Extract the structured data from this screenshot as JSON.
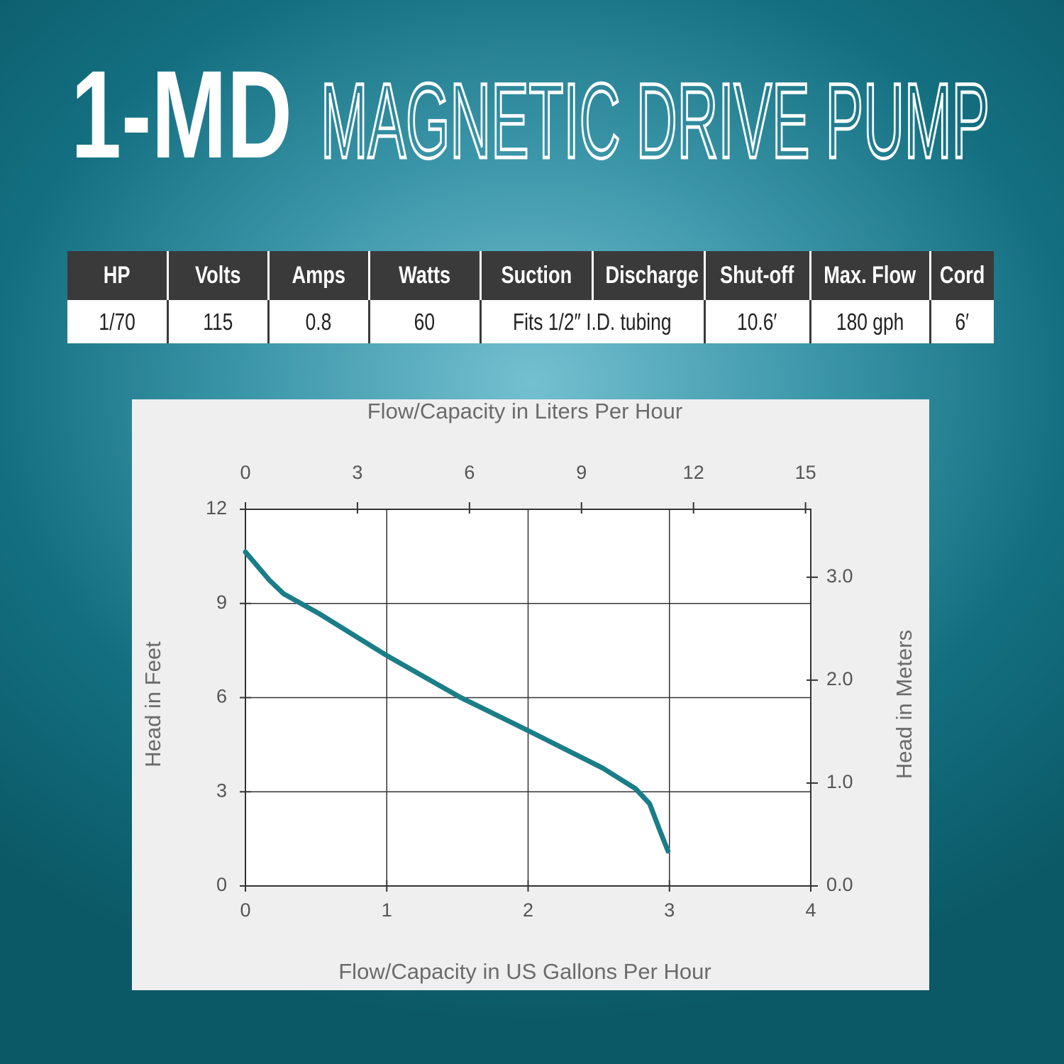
{
  "header": {
    "model": "1-MD",
    "title": "MAGNETIC DRIVE PUMP"
  },
  "table": {
    "columns": [
      "HP",
      "Volts",
      "Amps",
      "Watts",
      "Suction",
      "Discharge",
      "Shut-off",
      "Max. Flow",
      "Cord"
    ],
    "rows": [
      [
        "1/70",
        "115",
        "0.8",
        "60",
        "Fits 1/2″ I.D. tubing",
        "10.6′",
        "180 gph",
        "6′"
      ]
    ]
  },
  "chart_data": {
    "type": "line",
    "x_label": "Flow/Capacity in US Gallons Per Hour",
    "x2_label": "Flow/Capacity in Liters Per Hour",
    "y_label": "Head in Feet",
    "y2_label": "Head in Meters",
    "x": [
      0,
      0.17,
      0.27,
      0.52,
      1.0,
      1.52,
      2.0,
      2.53,
      2.76,
      2.86,
      2.93,
      2.99
    ],
    "series": [
      {
        "color": "#1a7d88",
        "values": [
          10.64,
          9.74,
          9.31,
          8.68,
          7.34,
          6.01,
          4.95,
          3.75,
          3.1,
          2.62,
          1.79,
          1.11
        ]
      }
    ],
    "xlim": [
      0,
      4
    ],
    "xticks": [
      0,
      1,
      2,
      3,
      4
    ],
    "x2lim": [
      0,
      15.14
    ],
    "x2ticks": [
      0,
      3,
      6,
      9,
      12,
      15
    ],
    "ylim": [
      0,
      12
    ],
    "yticks": [
      0,
      3,
      6,
      9,
      12
    ],
    "y2lim": [
      0,
      3.66
    ],
    "y2ticks": [
      {
        "value": 0,
        "label": "0.0"
      },
      {
        "value": 1,
        "label": "1.0"
      },
      {
        "value": 2,
        "label": "2.0"
      },
      {
        "value": 3,
        "label": "3.0"
      }
    ],
    "grid": true
  }
}
